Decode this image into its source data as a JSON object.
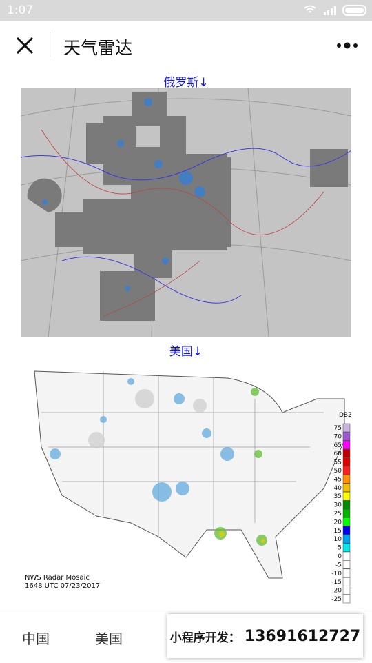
{
  "status_bar": {
    "time": "1:07"
  },
  "header": {
    "title": "天气雷达"
  },
  "sections": [
    {
      "caption": "俄罗斯↓"
    },
    {
      "caption": "美国↓",
      "map": {
        "stamp_lines": [
          "NWS Radar Mosaic",
          "1648 UTC 07/23/2017"
        ],
        "legend_title": "DBZ",
        "legend": [
          {
            "label": "75",
            "color": "#c8b4dc"
          },
          {
            "label": "70",
            "color": "#9b59d0"
          },
          {
            "label": "65",
            "color": "#ff00ff"
          },
          {
            "label": "60",
            "color": "#c00000"
          },
          {
            "label": "55",
            "color": "#e00000"
          },
          {
            "label": "50",
            "color": "#ff2020"
          },
          {
            "label": "45",
            "color": "#ff9000"
          },
          {
            "label": "40",
            "color": "#f0c000"
          },
          {
            "label": "35",
            "color": "#ffff00"
          },
          {
            "label": "30",
            "color": "#008c00"
          },
          {
            "label": "25",
            "color": "#00b400"
          },
          {
            "label": "20",
            "color": "#00ff00"
          },
          {
            "label": "15",
            "color": "#0000f0"
          },
          {
            "label": "10",
            "color": "#00a0f0"
          },
          {
            "label": "5",
            "color": "#00e8e8"
          },
          {
            "label": "0",
            "color": "#ffffff"
          },
          {
            "label": "-5",
            "color": "#ffffff"
          },
          {
            "label": "-10",
            "color": "#ffffff"
          },
          {
            "label": "-15",
            "color": "#ffffff"
          },
          {
            "label": "-20",
            "color": "#ffffff"
          },
          {
            "label": "-25",
            "color": "#ffffff"
          }
        ]
      }
    }
  ],
  "tabs": [
    "中国",
    "美国"
  ],
  "banner": {
    "label": "小程序开发：",
    "phone": "13691612727"
  }
}
